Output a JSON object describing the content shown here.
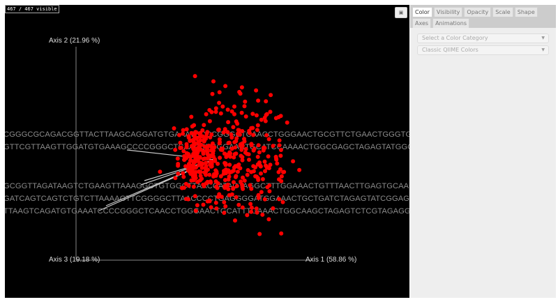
{
  "plot": {
    "visible_counter": "467 / 467 visible",
    "point_color": "#ff0000",
    "background_color": "#000000",
    "axes": {
      "axis1_label": "Axis 1 (58.86 %)",
      "axis2_label": "Axis 2 (21.96 %)",
      "axis3_label": "Axis 3 (19.18 %)"
    },
    "biplot_sequences": [
      "CGGGCGCAGACGGTTACTTAAGCAGGATGTGAAATCCCCGGGCTCAACCTGGGAACTGCGTTCTGAACTGGGTGAC",
      "GTTCGTTAAGTTGGATGTGAAAGCCCCGGGCTCAACCTGGGAACTGCATCCAAAACTGGCGAGCTAGAGTATGGCAC",
      "GCGGTTAGATAAGTCTGAAGTTAAAGGCTGTGGCTTAACCATAGTAGGCTTTGGAAACTGTTTAACTTGAGTGCAAGAG",
      "GATCAGTCAGTCTGTCTTAAAAGTTCGGGGCTTAACCCCTGAGGGGATGGAAACTGCTGATCTAGAGTATCGGAGA",
      "TTAAGTCAGATGTGAAATCCCCGGGCTCAACCTGGGAACTGCATTTGAAACTGGCAAGCTAGAGTCTCGTAGAGGGG"
    ],
    "toggle_icon": "menu-icon"
  },
  "panel": {
    "tabs": [
      {
        "label": "Color",
        "active": true
      },
      {
        "label": "Visibility"
      },
      {
        "label": "Opacity"
      },
      {
        "label": "Scale"
      },
      {
        "label": "Shape"
      },
      {
        "label": "Axes"
      },
      {
        "label": "Animations"
      }
    ],
    "color_category_placeholder": "Select a Color Category",
    "colormap_value": "Classic QIIME Colors"
  }
}
